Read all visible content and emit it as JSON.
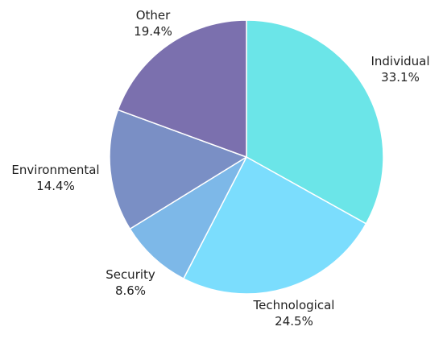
{
  "chart_data": {
    "type": "pie",
    "title": "",
    "legend": "none",
    "slices": [
      {
        "label": "Individual",
        "value": 33.1,
        "display": "33.1%",
        "color": "#6BE5E8"
      },
      {
        "label": "Technological",
        "value": 24.5,
        "display": "24.5%",
        "color": "#7BDDFD"
      },
      {
        "label": "Security",
        "value": 8.6,
        "display": "8.6%",
        "color": "#7DB8E8"
      },
      {
        "label": "Environmental",
        "value": 14.4,
        "display": "14.4%",
        "color": "#7A8FC5"
      },
      {
        "label": "Other",
        "value": 19.4,
        "display": "19.4%",
        "color": "#7B70AE"
      }
    ]
  }
}
